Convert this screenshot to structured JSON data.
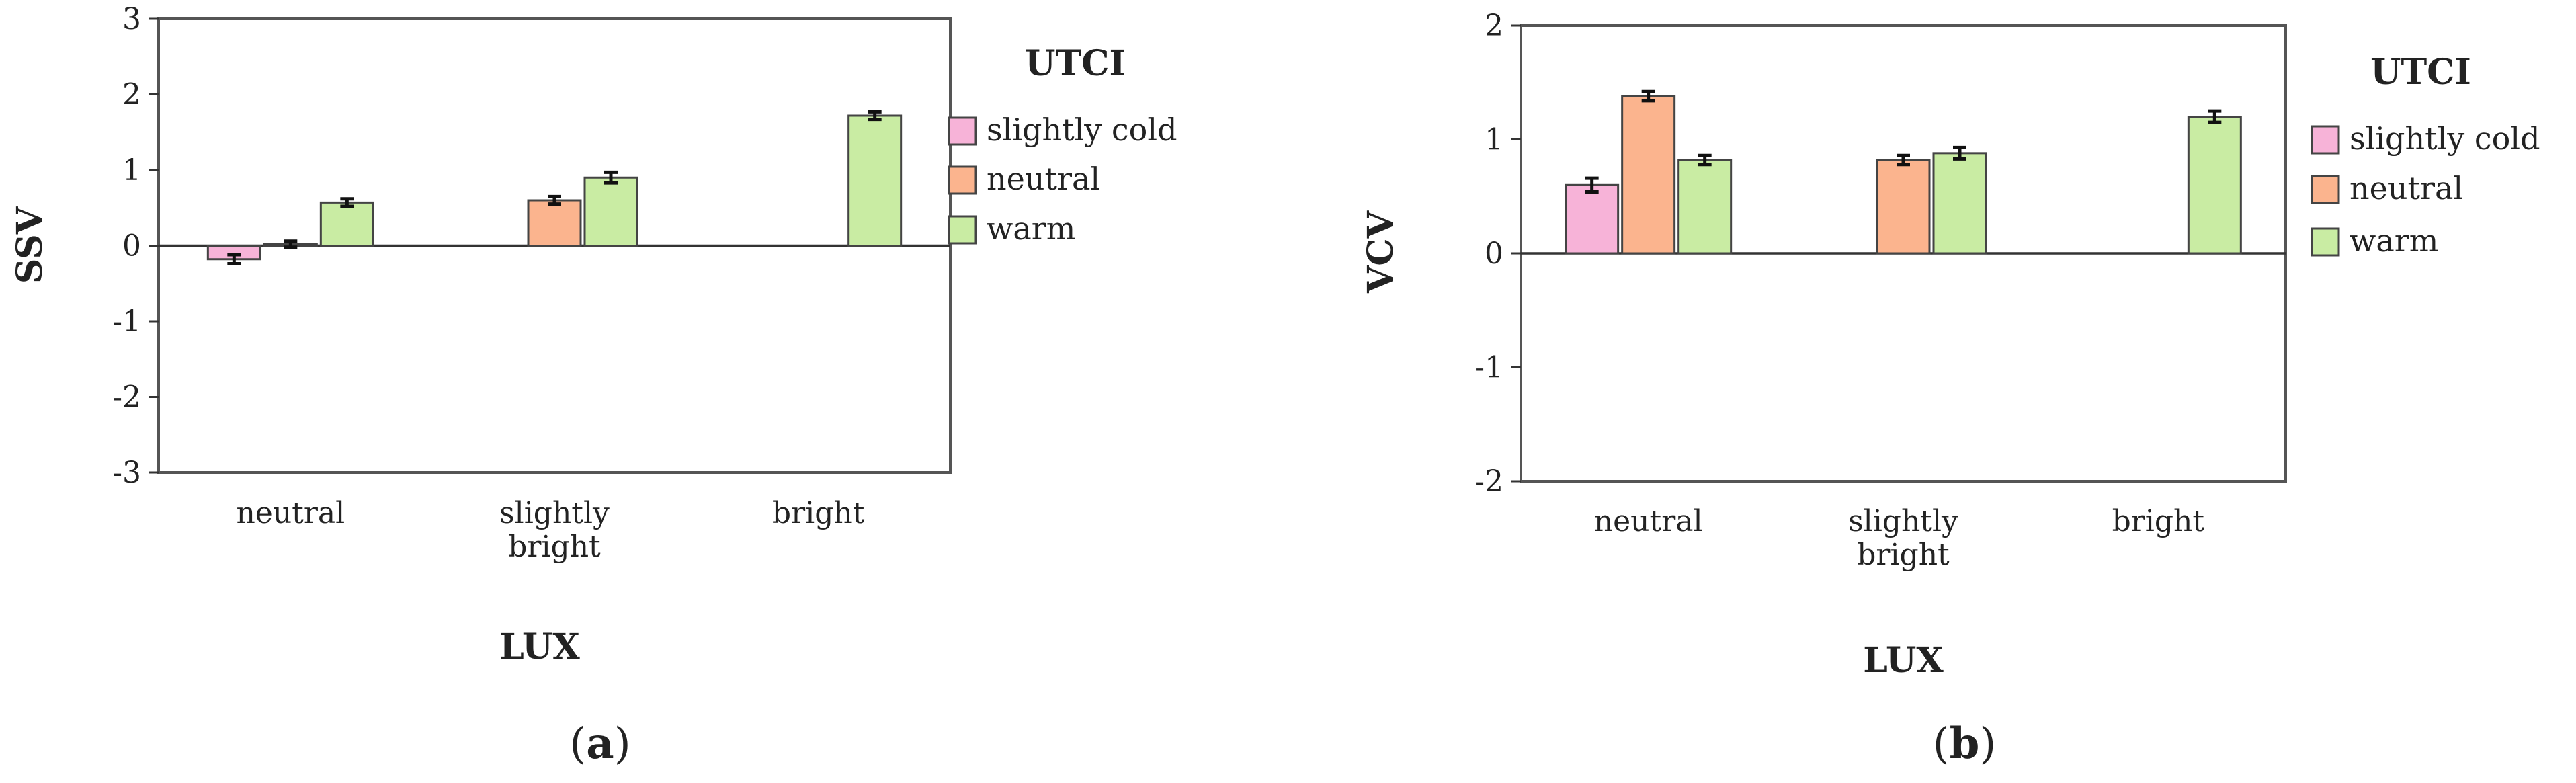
{
  "chart_data": [
    {
      "type": "bar",
      "panel_label": "a",
      "categories": [
        "neutral",
        "slightly bright",
        "bright"
      ],
      "category_lines": [
        [
          "neutral"
        ],
        [
          "slightly",
          "bright"
        ],
        [
          "bright"
        ]
      ],
      "series": [
        {
          "name": "slightly cold",
          "values": [
            -0.18,
            null,
            null
          ],
          "errors": [
            0.06,
            null,
            null
          ]
        },
        {
          "name": "neutral",
          "values": [
            0.02,
            0.6,
            null
          ],
          "errors": [
            0.04,
            0.05,
            null
          ]
        },
        {
          "name": "warm",
          "values": [
            0.57,
            0.9,
            1.72
          ],
          "errors": [
            0.05,
            0.07,
            0.05
          ]
        }
      ],
      "xlabel": "LUX",
      "ylabel": "SSV",
      "ylim": [
        -3,
        3
      ],
      "yticks": [
        -3,
        -2,
        -1,
        0,
        1,
        2,
        3
      ],
      "legend": {
        "title": "UTCI",
        "placement": "right"
      },
      "grid": false
    },
    {
      "type": "bar",
      "panel_label": "b",
      "categories": [
        "neutral",
        "slightly bright",
        "bright"
      ],
      "category_lines": [
        [
          "neutral"
        ],
        [
          "slightly",
          "bright"
        ],
        [
          "bright"
        ]
      ],
      "series": [
        {
          "name": "slightly cold",
          "values": [
            0.6,
            null,
            null
          ],
          "errors": [
            0.06,
            null,
            null
          ]
        },
        {
          "name": "neutral",
          "values": [
            1.38,
            0.82,
            null
          ],
          "errors": [
            0.04,
            0.04,
            null
          ]
        },
        {
          "name": "warm",
          "values": [
            0.82,
            0.88,
            1.2
          ],
          "errors": [
            0.04,
            0.05,
            0.05
          ]
        }
      ],
      "xlabel": "LUX",
      "ylabel": "VCV",
      "ylim": [
        -2,
        2
      ],
      "yticks": [
        -2,
        -1,
        0,
        1,
        2
      ],
      "legend": {
        "title": "UTCI",
        "placement": "right"
      },
      "grid": false
    }
  ],
  "colors": {
    "slightly cold": "#f7b3d8",
    "neutral": "#fbb48e",
    "warm": "#c9eca3",
    "bar_stroke": "#444444",
    "axis": "#333333",
    "frame": "#555555"
  }
}
